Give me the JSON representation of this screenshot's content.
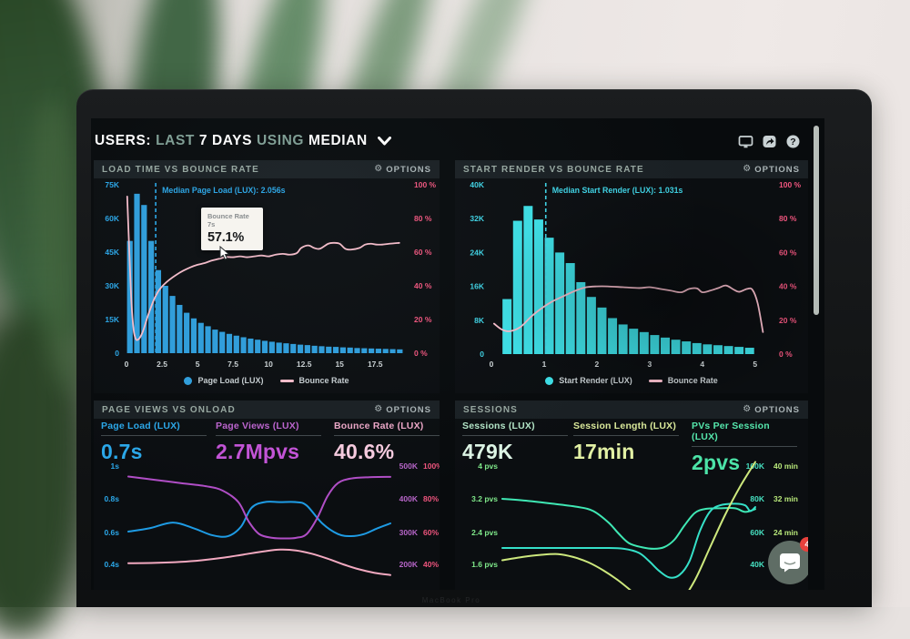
{
  "header": {
    "segments": [
      {
        "text": "USERS:",
        "style": "strong"
      },
      {
        "text": "LAST",
        "style": "muted"
      },
      {
        "text": "7 DAYS",
        "style": "strong"
      },
      {
        "text": "USING",
        "style": "muted"
      },
      {
        "text": "MEDIAN",
        "style": "strong"
      }
    ],
    "toolbar_icons": [
      "display-icon",
      "share-icon",
      "help-icon"
    ]
  },
  "ui": {
    "options_label": "OPTIONS",
    "options_icon": "gear-icon"
  },
  "laptop": {
    "brand_text": "MacBook Pro"
  },
  "chat": {
    "badge": "4",
    "icon": "chat-bubble-icon"
  },
  "colors": {
    "screen_bg": "#080b0d",
    "panel_bg": "#0b0e11",
    "panel_header_bg": "#1a2024",
    "blue": "#2ba7e8",
    "cyan": "#3fd2e4",
    "pink_label": "#f0557e",
    "pink_line": "#f5bcca",
    "purple": "#bc64ce",
    "mint": "#dcf4e4",
    "lime": "#d9e89a",
    "spring_green": "#4ce4a8",
    "badge_red": "#e8413c"
  },
  "chart_data": [
    {
      "panel_title": "LOAD TIME VS BOUNCE RATE",
      "type": "histogram+line",
      "x_axis": {
        "unit": "seconds",
        "range": [
          0,
          19.6
        ],
        "tick_values": [
          0,
          2.5,
          5,
          7.5,
          10,
          12.5,
          15,
          17.5
        ],
        "tick_labels": [
          "0",
          "2.5",
          "5",
          "7.5",
          "10",
          "12.5",
          "15",
          "17.5"
        ]
      },
      "y_left": {
        "color": "#2ba7e8",
        "range": [
          0,
          75000
        ],
        "tick_labels": [
          "75K",
          "60K",
          "45K",
          "30K",
          "15K",
          "0"
        ]
      },
      "y_right": {
        "color": "#f0557e",
        "range_pct": [
          0,
          100
        ],
        "tick_labels": [
          "100 %",
          "80 %",
          "60 %",
          "40 %",
          "20 %",
          "0 %"
        ]
      },
      "bars": {
        "name": "Page Load (LUX)",
        "color": "#2f9edc",
        "bin_start": 0,
        "bin_width": 0.5,
        "values_unit": "K",
        "values": [
          50,
          71,
          66,
          50,
          37,
          30,
          25.5,
          21.5,
          18,
          15.5,
          13.5,
          12,
          10.5,
          9.5,
          8.6,
          7.8,
          7.1,
          6.5,
          6,
          5.5,
          5.1,
          4.7,
          4.4,
          4.1,
          3.8,
          3.6,
          3.3,
          3.1,
          2.9,
          2.8,
          2.6,
          2.5,
          2.3,
          2.2,
          2.1,
          2,
          1.9,
          1.8,
          1.7
        ]
      },
      "line": {
        "name": "Bounce Rate",
        "color": "#f5bcca",
        "points": [
          [
            0.05,
            93
          ],
          [
            0.2,
            60
          ],
          [
            0.35,
            30
          ],
          [
            0.5,
            14
          ],
          [
            0.65,
            8.5
          ],
          [
            0.8,
            8
          ],
          [
            1,
            10
          ],
          [
            1.2,
            14
          ],
          [
            1.5,
            22
          ],
          [
            1.8,
            29
          ],
          [
            2,
            33
          ],
          [
            2.3,
            37.5
          ],
          [
            2.6,
            40.5
          ],
          [
            3,
            43.5
          ],
          [
            3.5,
            46.5
          ],
          [
            4,
            49
          ],
          [
            4.5,
            51
          ],
          [
            5,
            52.5
          ],
          [
            5.5,
            53.5
          ],
          [
            6,
            55
          ],
          [
            6.5,
            56
          ],
          [
            7,
            57.1
          ],
          [
            7.5,
            57
          ],
          [
            8,
            57.5
          ],
          [
            8.5,
            57
          ],
          [
            9,
            57.5
          ],
          [
            9.5,
            58
          ],
          [
            10,
            57.5
          ],
          [
            10.5,
            58.5
          ],
          [
            11,
            59
          ],
          [
            11.5,
            58.5
          ],
          [
            12,
            59.5
          ],
          [
            12.3,
            62.5
          ],
          [
            12.8,
            64
          ],
          [
            13.2,
            62.5
          ],
          [
            13.6,
            62
          ],
          [
            14.2,
            65
          ],
          [
            14.6,
            65.5
          ],
          [
            15,
            65
          ],
          [
            15.4,
            62
          ],
          [
            15.8,
            61.5
          ],
          [
            16.4,
            62.5
          ],
          [
            16.8,
            64.5
          ],
          [
            17.2,
            65
          ],
          [
            17.6,
            64.5
          ],
          [
            18,
            64.5
          ],
          [
            18.5,
            65
          ],
          [
            19.2,
            65.5
          ]
        ]
      },
      "median": {
        "x": 2.056,
        "label": "Median Page Load (LUX): 2.056s",
        "color": "#2ba7e8"
      },
      "tooltip": {
        "metric": "Bounce Rate",
        "x_value": "7s",
        "value": "57.1%"
      },
      "legend": [
        {
          "label": "Page Load (LUX)",
          "swatch": "dot"
        },
        {
          "label": "Bounce Rate",
          "swatch": "line"
        }
      ]
    },
    {
      "panel_title": "START RENDER VS BOUNCE RATE",
      "type": "histogram+line",
      "x_axis": {
        "unit": "seconds",
        "range": [
          0,
          5.35
        ],
        "tick_values": [
          0,
          1,
          2,
          3,
          4,
          5
        ],
        "tick_labels": [
          "0",
          "1",
          "2",
          "3",
          "4",
          "5"
        ]
      },
      "y_left": {
        "color": "#3fd2e4",
        "range": [
          0,
          40000
        ],
        "tick_labels": [
          "40K",
          "32K",
          "24K",
          "16K",
          "8K",
          "0"
        ]
      },
      "y_right": {
        "color": "#f0557e",
        "range_pct": [
          0,
          100
        ],
        "tick_labels": [
          "100 %",
          "80 %",
          "60 %",
          "40 %",
          "20 %",
          "0 %"
        ]
      },
      "bars": {
        "name": "Start Render (LUX)",
        "color": "#3ddde4",
        "bin_start": 0.2,
        "bin_width": 0.2,
        "values_unit": "K",
        "values": [
          13,
          31.5,
          35,
          31.8,
          27.5,
          24,
          21.5,
          17,
          13.5,
          11,
          8.5,
          7,
          6,
          5.2,
          4.5,
          3.9,
          3.4,
          3,
          2.6,
          2.3,
          2.1,
          1.9,
          1.7,
          1.5
        ]
      },
      "line": {
        "name": "Bounce Rate",
        "color": "#f5bcca",
        "points": [
          [
            0.05,
            18
          ],
          [
            0.2,
            14.5
          ],
          [
            0.35,
            13.5
          ],
          [
            0.55,
            16
          ],
          [
            0.75,
            22
          ],
          [
            0.95,
            27
          ],
          [
            1.15,
            31
          ],
          [
            1.35,
            34
          ],
          [
            1.6,
            37.5
          ],
          [
            1.8,
            39.5
          ],
          [
            2,
            40
          ],
          [
            2.2,
            40
          ],
          [
            2.5,
            39.5
          ],
          [
            2.8,
            39
          ],
          [
            3,
            39.5
          ],
          [
            3.2,
            38.5
          ],
          [
            3.4,
            37.5
          ],
          [
            3.6,
            36.5
          ],
          [
            3.75,
            38.5
          ],
          [
            3.9,
            38.8
          ],
          [
            4,
            36.5
          ],
          [
            4.15,
            37.5
          ],
          [
            4.3,
            39
          ],
          [
            4.45,
            40.5
          ],
          [
            4.6,
            38
          ],
          [
            4.7,
            36.8
          ],
          [
            4.85,
            38.5
          ],
          [
            4.95,
            38
          ],
          [
            5.05,
            30
          ],
          [
            5.15,
            13
          ]
        ]
      },
      "median": {
        "x": 1.031,
        "label": "Median Start Render (LUX): 1.031s",
        "color": "#3fd2e4"
      },
      "legend": [
        {
          "label": "Start Render (LUX)",
          "swatch": "dot"
        },
        {
          "label": "Bounce Rate",
          "swatch": "line"
        }
      ]
    },
    {
      "panel_title": "PAGE VIEWS VS ONLOAD",
      "type": "multi-line",
      "metrics": [
        {
          "label": "Page Load (LUX)",
          "value": "0.7s",
          "color": "#2ba7e8"
        },
        {
          "label": "Page Views (LUX)",
          "value": "2.7Mpvs",
          "color": "#c353d6"
        },
        {
          "label": "Bounce Rate (LUX)",
          "value": "40.6%",
          "color": "#f6cade"
        }
      ],
      "y_left": {
        "color": "#2ba7e8",
        "tick_labels": [
          "1s",
          "0.8s",
          "0.6s",
          "0.4s"
        ]
      },
      "y_right_groups": [
        {
          "color": "#b765c8",
          "tick_labels": [
            "500K",
            "400K",
            "300K",
            "200K"
          ]
        },
        {
          "color": "#f0557e",
          "tick_labels": [
            "100%",
            "80%",
            "60%",
            "40%"
          ]
        }
      ],
      "series": [
        {
          "name": "Page Load (LUX)",
          "unit": "s",
          "color": "#1e9be4",
          "axis_top": 1,
          "axis_bottom": 0.4,
          "points": [
            [
              0,
              0.6
            ],
            [
              8,
              0.62
            ],
            [
              17,
              0.655
            ],
            [
              25,
              0.62
            ],
            [
              32,
              0.578
            ],
            [
              38,
              0.572
            ],
            [
              43,
              0.63
            ],
            [
              47,
              0.745
            ],
            [
              52,
              0.78
            ],
            [
              58,
              0.78
            ],
            [
              64,
              0.78
            ],
            [
              68,
              0.76
            ],
            [
              74,
              0.65
            ],
            [
              80,
              0.585
            ],
            [
              85,
              0.572
            ],
            [
              90,
              0.585
            ],
            [
              95,
              0.62
            ],
            [
              100,
              0.65
            ]
          ]
        },
        {
          "name": "Page Views (LUX)",
          "unit": "K",
          "color": "#b04ec6",
          "axis_top": 500,
          "axis_bottom": 200,
          "points": [
            [
              0,
              468
            ],
            [
              10,
              458
            ],
            [
              20,
              448
            ],
            [
              30,
              438
            ],
            [
              36,
              425
            ],
            [
              42,
              390
            ],
            [
              46,
              330
            ],
            [
              50,
              292
            ],
            [
              55,
              281
            ],
            [
              60,
              279
            ],
            [
              64,
              281
            ],
            [
              68,
              292
            ],
            [
              72,
              340
            ],
            [
              76,
              408
            ],
            [
              80,
              448
            ],
            [
              85,
              462
            ],
            [
              92,
              466
            ],
            [
              100,
              467
            ]
          ]
        },
        {
          "name": "Bounce Rate (LUX)",
          "unit": "%",
          "color": "#f2a9c0",
          "axis_top": 100,
          "axis_bottom": 40,
          "points": [
            [
              0,
              40.7
            ],
            [
              10,
              40.9
            ],
            [
              20,
              41.5
            ],
            [
              28,
              42.5
            ],
            [
              36,
              44
            ],
            [
              44,
              46
            ],
            [
              52,
              48
            ],
            [
              58,
              49
            ],
            [
              64,
              48.5
            ],
            [
              70,
              46.5
            ],
            [
              76,
              43.5
            ],
            [
              82,
              40
            ],
            [
              88,
              37
            ],
            [
              94,
              34.8
            ],
            [
              100,
              33.5
            ]
          ]
        }
      ]
    },
    {
      "panel_title": "SESSIONS",
      "type": "multi-line",
      "metrics": [
        {
          "label": "Sessions (LUX)",
          "value": "479K",
          "color": "#dcf4e4"
        },
        {
          "label": "Session Length (LUX)",
          "value": "17min",
          "color": "#e2f0a4"
        },
        {
          "label": "PVs Per Session (LUX)",
          "value": "2pvs",
          "color": "#4ce4a8"
        }
      ],
      "y_left": {
        "color": "#7fe88a",
        "tick_labels": [
          "4 pvs",
          "3.2 pvs",
          "2.4 pvs",
          "1.6 pvs"
        ]
      },
      "y_right_groups": [
        {
          "color": "#47e2c2",
          "tick_labels": [
            "100K",
            "80K",
            "60K",
            "40K"
          ]
        },
        {
          "color": "#b8e87a",
          "tick_labels": [
            "40 min",
            "32 min",
            "24 min",
            ""
          ]
        }
      ],
      "series": [
        {
          "name": "PVs Per Session (LUX)",
          "unit": "pvs",
          "color": "#3fe8b4",
          "axis_top": 4,
          "axis_bottom": 1.6,
          "points": [
            [
              0,
              3.2
            ],
            [
              10,
              3.15
            ],
            [
              20,
              3.08
            ],
            [
              30,
              3
            ],
            [
              36,
              2.9
            ],
            [
              42,
              2.62
            ],
            [
              46,
              2.35
            ],
            [
              50,
              2.12
            ],
            [
              55,
              2.02
            ],
            [
              60,
              1.98
            ],
            [
              64,
              2.02
            ],
            [
              68,
              2.2
            ],
            [
              72,
              2.55
            ],
            [
              76,
              2.85
            ],
            [
              80,
              2.95
            ],
            [
              86,
              2.97
            ],
            [
              92,
              2.97
            ],
            [
              96,
              2.88
            ],
            [
              100,
              2.95
            ]
          ]
        },
        {
          "name": "Sessions (LUX)",
          "unit": "K",
          "color": "#35e0c8",
          "axis_top": 100,
          "axis_bottom": 40,
          "points": [
            [
              0,
              50
            ],
            [
              20,
              50
            ],
            [
              40,
              50
            ],
            [
              48,
              49.5
            ],
            [
              54,
              47
            ],
            [
              58,
              42
            ],
            [
              62,
              36
            ],
            [
              66,
              32
            ],
            [
              70,
              33.5
            ],
            [
              74,
              42
            ],
            [
              78,
              60
            ],
            [
              82,
              72
            ],
            [
              86,
              76
            ],
            [
              92,
              77
            ],
            [
              96,
              76
            ],
            [
              98,
              72.5
            ],
            [
              100,
              75
            ]
          ]
        },
        {
          "name": "Session Length (LUX)",
          "unit": "min",
          "color": "#cde87d",
          "axis_top": 40,
          "axis_bottom": 16,
          "points": [
            [
              0,
              17
            ],
            [
              8,
              17.8
            ],
            [
              15,
              18.3
            ],
            [
              22,
              18.5
            ],
            [
              28,
              17.8
            ],
            [
              34,
              16.5
            ],
            [
              40,
              14.5
            ],
            [
              46,
              12
            ],
            [
              52,
              9
            ],
            [
              58,
              6
            ],
            [
              64,
              4.5
            ],
            [
              70,
              6.5
            ],
            [
              76,
              12
            ],
            [
              82,
              20
            ],
            [
              88,
              28
            ],
            [
              94,
              35
            ],
            [
              100,
              41
            ]
          ]
        }
      ]
    }
  ]
}
